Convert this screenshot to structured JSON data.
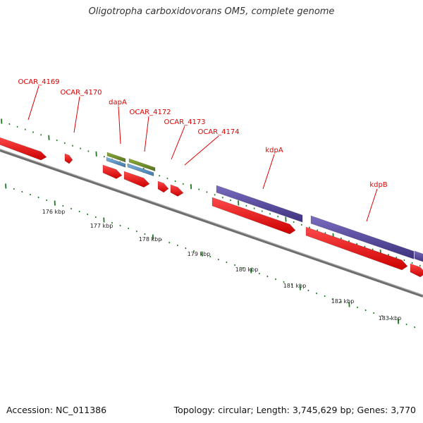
{
  "title": "Oligotropha carboxidovorans OM5, complete genome",
  "footer": {
    "accession": "Accession: NC_011386",
    "summary": "Topology: circular; Length: 3,745,629 bp; Genes: 3,770"
  },
  "colors": {
    "cds": "#ee1111",
    "rrna": "#6a8a22",
    "trna": "#4f86b8",
    "operon": "#5a4c9a",
    "backbone": "#808080",
    "tick": "#1f7a1f",
    "label": "#dd0000"
  },
  "genes": [
    {
      "name": "OCAR_4169"
    },
    {
      "name": "OCAR_4170"
    },
    {
      "name": "dapA"
    },
    {
      "name": "OCAR_4172"
    },
    {
      "name": "OCAR_4173"
    },
    {
      "name": "OCAR_4174"
    },
    {
      "name": "kdpA"
    },
    {
      "name": "kdpB"
    }
  ],
  "scale_labels": [
    "176 kbp",
    "177 kbp",
    "178 kbp",
    "179 kbp",
    "180 kbp",
    "181 kbp",
    "182 kbp",
    "183 kbp"
  ]
}
